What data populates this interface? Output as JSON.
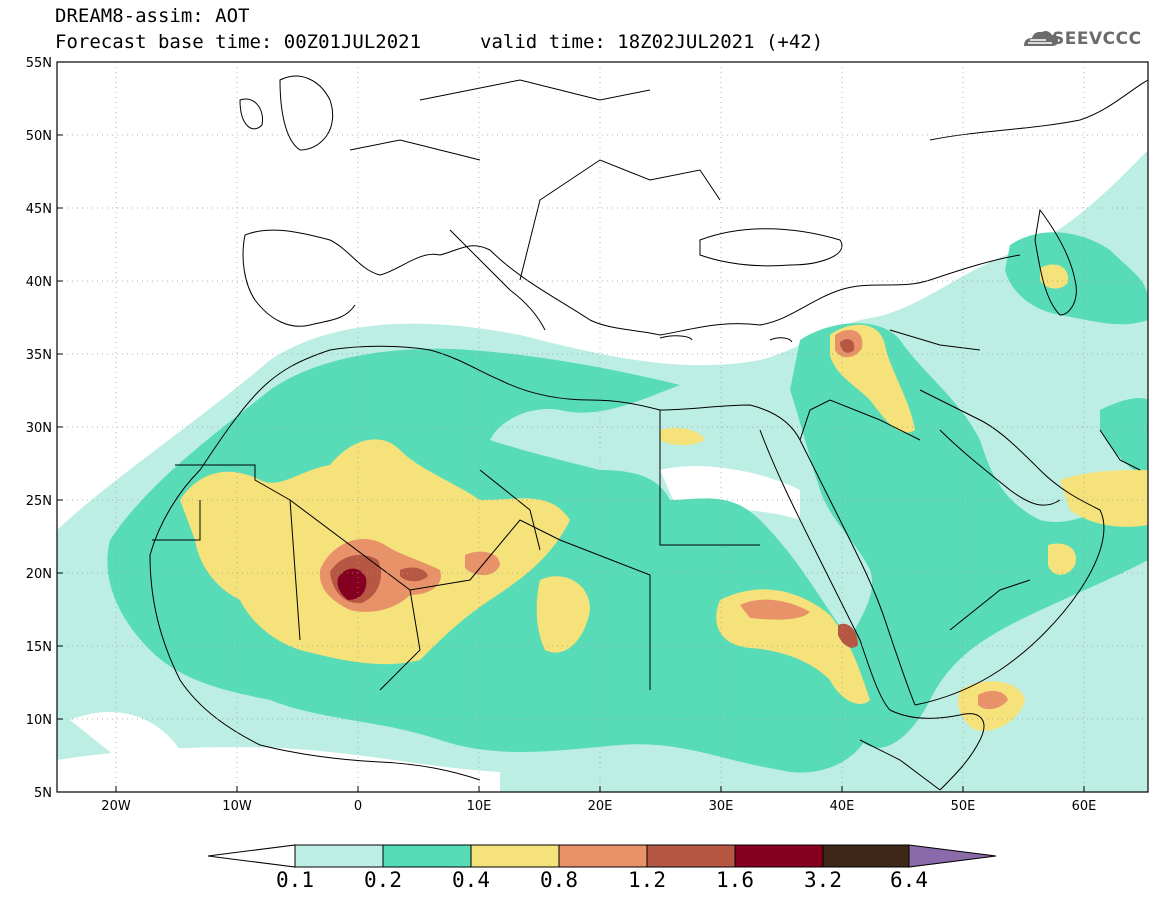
{
  "title": {
    "product": "DREAM8-assim: AOT",
    "base_time": "Forecast base time: 00Z01JUL2021",
    "valid_time": "valid time: 18Z02JUL2021 (+42)"
  },
  "logo": {
    "text": "SEEVCCC",
    "icon": "cloud-icon"
  },
  "map": {
    "lat_ticks": [
      "55N",
      "50N",
      "45N",
      "40N",
      "35N",
      "30N",
      "25N",
      "20N",
      "15N",
      "10N",
      "5N"
    ],
    "lon_ticks": [
      "20W",
      "10W",
      "0",
      "10E",
      "20E",
      "30E",
      "40E",
      "50E",
      "60E"
    ],
    "lon_range": [
      -25,
      65
    ],
    "lat_range": [
      5,
      55
    ]
  },
  "colorbar": {
    "labels": [
      "0.1",
      "0.2",
      "0.4",
      "0.8",
      "1.2",
      "1.6",
      "3.2",
      "6.4"
    ],
    "colors": [
      "#bdeee3",
      "#58dcb8",
      "#f5e27a",
      "#e8926a",
      "#b65744",
      "#850020",
      "#3e2716",
      "#8a6aaa"
    ]
  }
}
